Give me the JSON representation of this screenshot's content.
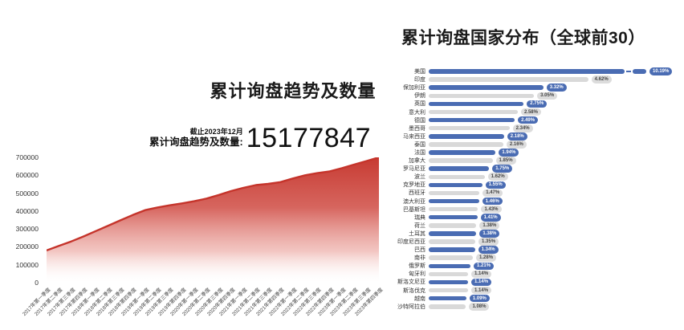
{
  "left_chart": {
    "title": "累计询盘趋势及数量",
    "as_of": "截止2023年12月",
    "total_label": "累计询盘趋势及数量:",
    "total_value": "15177847"
  },
  "right_chart": {
    "title": "累计询盘国家分布（全球前30）"
  },
  "colors": {
    "trend_line": "#c5342b",
    "bar_primary": "#4a6cb3",
    "bar_secondary": "#d9d9d9"
  },
  "chart_data": [
    {
      "type": "area",
      "title": "累计询盘趋势及数量",
      "xlabel": "",
      "ylabel": "",
      "ylim": [
        0,
        700000
      ],
      "yticks": [
        700000,
        600000,
        500000,
        400000,
        300000,
        200000,
        100000,
        0
      ],
      "grid": false,
      "x": [
        "2017年第一季度",
        "2017年第二季度",
        "2017年第三季度",
        "2017年第四季度",
        "2018年第一季度",
        "2018年第二季度",
        "2018年第三季度",
        "2018年第四季度",
        "2019年第一季度",
        "2019年第二季度",
        "2019年第三季度",
        "2019年第四季度",
        "2020年第一季度",
        "2020年第二季度",
        "2020年第三季度",
        "2020年第四季度",
        "2021年第一季度",
        "2021年第二季度",
        "2021年第三季度",
        "2021年第四季度",
        "2022年第一季度",
        "2022年第二季度",
        "2022年第三季度",
        "2022年第四季度",
        "2023年第一季度",
        "2023年第二季度",
        "2023年第三季度",
        "2023年第四季度"
      ],
      "values": [
        180000,
        205000,
        230000,
        258000,
        288000,
        318000,
        348000,
        378000,
        405000,
        420000,
        432000,
        443000,
        455000,
        470000,
        490000,
        512000,
        530000,
        545000,
        552000,
        562000,
        582000,
        600000,
        612000,
        622000,
        640000,
        660000,
        680000,
        700000
      ]
    },
    {
      "type": "bar",
      "orientation": "horizontal",
      "title": "累计询盘国家分布（全球前30）",
      "unit": "%",
      "broken_bar_index": 0,
      "categories": [
        "美国",
        "印度",
        "保加利亚",
        "伊朗",
        "英国",
        "意大利",
        "德国",
        "墨西哥",
        "马来西亚",
        "泰国",
        "法国",
        "加拿大",
        "罗马尼亚",
        "波兰",
        "克罗地亚",
        "西班牙",
        "澳大利亚",
        "巴基斯坦",
        "瑞典",
        "荷兰",
        "土耳其",
        "印度尼西亚",
        "巴西",
        "南非",
        "俄罗斯",
        "匈牙利",
        "斯洛文尼亚",
        "斯洛伐克",
        "越南",
        "沙特阿拉伯"
      ],
      "values": [
        10.19,
        4.62,
        3.32,
        3.05,
        2.75,
        2.58,
        2.49,
        2.34,
        2.18,
        2.16,
        1.94,
        1.85,
        1.75,
        1.62,
        1.55,
        1.47,
        1.46,
        1.43,
        1.41,
        1.38,
        1.38,
        1.35,
        1.34,
        1.28,
        1.21,
        1.14,
        1.14,
        1.14,
        1.09,
        1.08
      ],
      "labels": [
        "10.19%",
        "4.62%",
        "3.32%",
        "3.05%",
        "2.75%",
        "2.58%",
        "2.49%",
        "2.34%",
        "2.18%",
        "2.16%",
        "1.94%",
        "1.85%",
        "1.75%",
        "1.62%",
        "1.55%",
        "1.47%",
        "1.46%",
        "1.43%",
        "1.41%",
        "1.38%",
        "1.38%",
        "1.35%",
        "1.34%",
        "1.28%",
        "1.21%",
        "1.14%",
        "1.14%",
        "1.14%",
        "1.09%",
        "1.08%"
      ]
    }
  ]
}
